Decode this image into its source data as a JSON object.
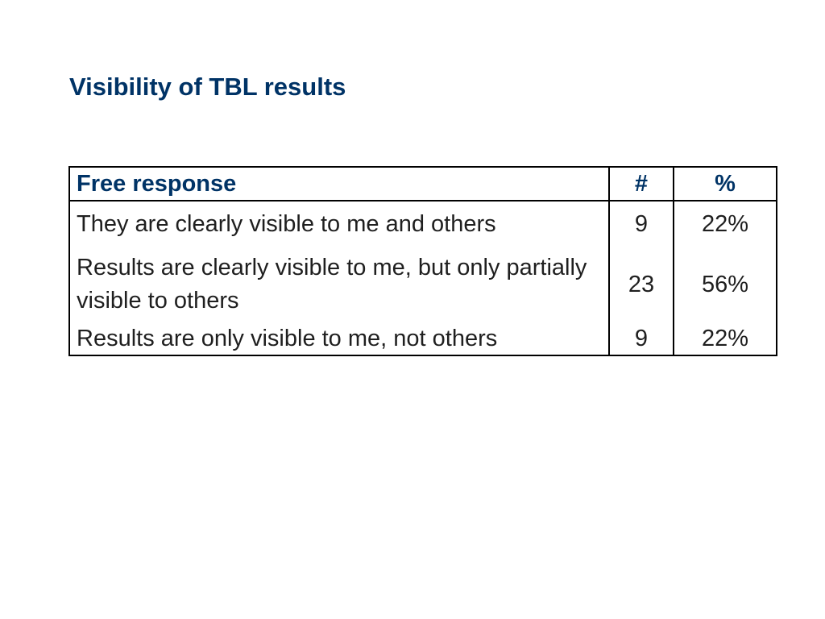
{
  "title": "Visibility of TBL results",
  "colors": {
    "title": "#003366",
    "header_text": "#003366",
    "body_text": "#1f1f1f",
    "border": "#000000",
    "background": "#ffffff"
  },
  "table": {
    "headers": [
      "Free response",
      "#",
      "%"
    ],
    "rows": [
      {
        "response": "They are clearly visible to me and others",
        "count": "9",
        "percent": "22%"
      },
      {
        "response": "Results are clearly visible to me, but only partially visible to others",
        "count": "23",
        "percent": "56%"
      },
      {
        "response": "Results are only visible to me, not others",
        "count": "9",
        "percent": "22%"
      }
    ]
  }
}
